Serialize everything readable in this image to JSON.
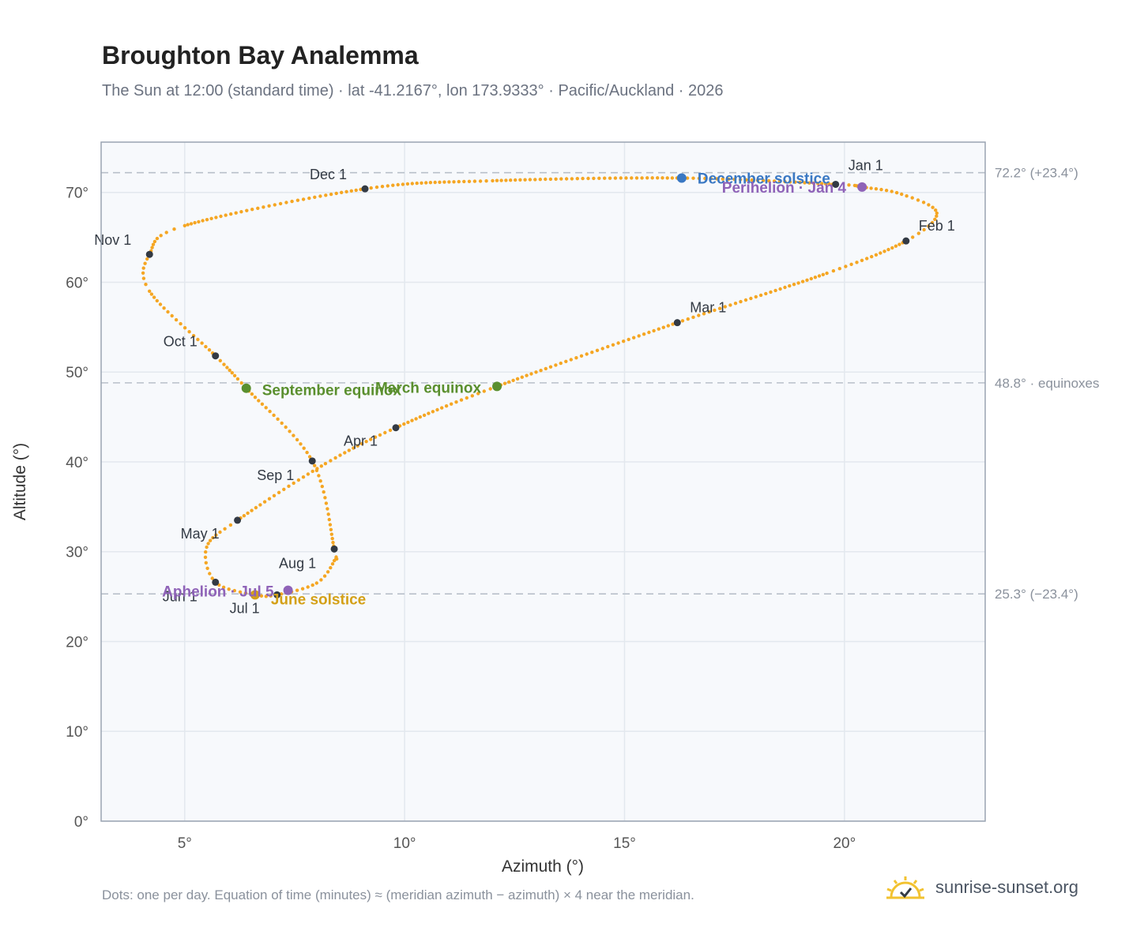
{
  "title": "Broughton Bay Analemma",
  "subtitle": "The Sun at 12:00 (standard time) · lat -41.2167°, lon 173.9333° · Pacific/Auckland · 2026",
  "footnote": "Dots: one per day. Equation of time (minutes) ≈ (meridian azimuth − azimuth) × 4 near the meridian.",
  "brand": {
    "text": "sunrise-sunset.org",
    "icon": "sun-logo-icon"
  },
  "colors": {
    "curve": "#f5a623",
    "month_marker": "#333a44",
    "equinox": "#5a8f2e",
    "december_solstice": "#3a78c3",
    "june_solstice": "#d4a017",
    "perihelion_aphelion": "#8f63b8",
    "reference_line": "#b8c0ca",
    "plot_bg": "#f7f9fc",
    "grid": "#e3e8ee"
  },
  "chart_data": {
    "type": "scatter",
    "title": "Broughton Bay Analemma",
    "xlabel": "Azimuth (°)",
    "ylabel": "Altitude (°)",
    "xlim": [
      3.1,
      23.2
    ],
    "ylim": [
      0,
      75.6
    ],
    "xticks": [
      5,
      10,
      15,
      20
    ],
    "yticks": [
      0,
      10,
      20,
      30,
      40,
      50,
      60,
      70
    ],
    "tick_suffix": "°",
    "grid": true,
    "series": [
      {
        "type": "scatter",
        "points": [
          {
            "x": 19.8,
            "y": 70.9
          },
          {
            "x": 20.4,
            "y": 70.6
          },
          {
            "x": 21.3,
            "y": 69.8
          },
          {
            "x": 22.1,
            "y": 67.7
          },
          {
            "x": 21.4,
            "y": 64.6
          },
          {
            "x": 19.6,
            "y": 61.0
          },
          {
            "x": 16.2,
            "y": 55.5
          },
          {
            "x": 12.1,
            "y": 48.4
          },
          {
            "x": 9.8,
            "y": 43.8
          },
          {
            "x": 8.2,
            "y": 39.8
          },
          {
            "x": 6.2,
            "y": 33.5
          },
          {
            "x": 5.5,
            "y": 30.5
          },
          {
            "x": 5.7,
            "y": 26.6
          },
          {
            "x": 6.6,
            "y": 25.2
          },
          {
            "x": 7.1,
            "y": 25.2
          },
          {
            "x": 8.0,
            "y": 26.5
          },
          {
            "x": 8.4,
            "y": 29.0
          },
          {
            "x": 8.4,
            "y": 30.3
          },
          {
            "x": 7.9,
            "y": 40.1
          },
          {
            "x": 6.4,
            "y": 48.2
          },
          {
            "x": 5.7,
            "y": 51.8
          },
          {
            "x": 4.2,
            "y": 59.0
          },
          {
            "x": 4.2,
            "y": 63.1
          },
          {
            "x": 5.0,
            "y": 66.3
          },
          {
            "x": 9.1,
            "y": 70.4
          },
          {
            "x": 12.0,
            "y": 71.3
          },
          {
            "x": 16.3,
            "y": 71.6
          },
          {
            "x": 19.8,
            "y": 70.9
          }
        ]
      }
    ],
    "month_markers": [
      {
        "label": "Jan 1",
        "x": 19.8,
        "y": 70.9
      },
      {
        "label": "Feb 1",
        "x": 21.4,
        "y": 64.6
      },
      {
        "label": "Mar 1",
        "x": 16.2,
        "y": 55.5
      },
      {
        "label": "Apr 1",
        "x": 9.8,
        "y": 43.8
      },
      {
        "label": "May 1",
        "x": 6.2,
        "y": 33.5
      },
      {
        "label": "Jun 1",
        "x": 5.7,
        "y": 26.6
      },
      {
        "label": "Jul 1",
        "x": 7.1,
        "y": 25.2
      },
      {
        "label": "Aug 1",
        "x": 8.4,
        "y": 30.3
      },
      {
        "label": "Sep 1",
        "x": 7.9,
        "y": 40.1
      },
      {
        "label": "Oct 1",
        "x": 5.7,
        "y": 51.8
      },
      {
        "label": "Nov 1",
        "x": 4.2,
        "y": 63.1
      },
      {
        "label": "Dec 1",
        "x": 9.1,
        "y": 70.4
      }
    ],
    "events": [
      {
        "label": "December solstice",
        "x": 16.3,
        "y": 71.6,
        "kind": "december_solstice"
      },
      {
        "label": "Perihelion · Jan 4",
        "x": 20.4,
        "y": 70.6,
        "kind": "perihelion_aphelion"
      },
      {
        "label": "March equinox",
        "x": 12.1,
        "y": 48.4,
        "kind": "equinox"
      },
      {
        "label": "September equinox",
        "x": 6.4,
        "y": 48.2,
        "kind": "equinox"
      },
      {
        "label": "June solstice",
        "x": 6.6,
        "y": 25.2,
        "kind": "june_solstice"
      },
      {
        "label": "Aphelion · Jul 5",
        "x": 7.35,
        "y": 25.7,
        "kind": "perihelion_aphelion"
      }
    ],
    "reference_lines": [
      {
        "y": 72.2,
        "label": "72.2° (+23.4°)"
      },
      {
        "y": 48.8,
        "label": "48.8° · equinoxes"
      },
      {
        "y": 25.3,
        "label": "25.3° (−23.4°)"
      }
    ]
  }
}
